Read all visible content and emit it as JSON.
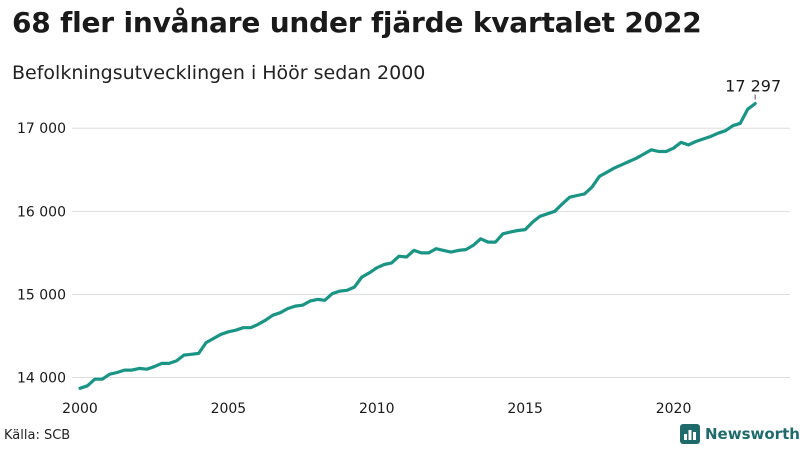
{
  "header": {
    "title": "68 fler invånare under fjärde kvartalet 2022",
    "subtitle": "Befolkningsutvecklingen i Höör sedan 2000"
  },
  "footer": {
    "source": "Källa: SCB",
    "brand": "Newsworthy",
    "brand_icon": "bar-chart-icon"
  },
  "colors": {
    "line": "#1a9585",
    "grid": "#dddddd",
    "axis_text": "#1a1a1a",
    "brand": "#1f6b6b"
  },
  "chart_data": {
    "type": "line",
    "title": "68 fler invånare under fjärde kvartalet 2022",
    "subtitle": "Befolkningsutvecklingen i Höör sedan 2000",
    "x_unit": "quarter",
    "x_start": "2000 Q1",
    "x_ticks": [
      2000,
      2005,
      2010,
      2015,
      2020
    ],
    "y_ticks": [
      14000,
      15000,
      16000,
      17000
    ],
    "y_tick_labels": [
      "14 000",
      "15 000",
      "16 000",
      "17 000"
    ],
    "ylim": [
      13850,
      17400
    ],
    "xlim": [
      2000,
      2023.25
    ],
    "grid": "horizontal",
    "legend": "none",
    "end_label": "17 297",
    "series": [
      {
        "values": [
          13870,
          13900,
          13980,
          13980,
          14040,
          14060,
          14090,
          14090,
          14110,
          14100,
          14130,
          14170,
          14170,
          14200,
          14270,
          14280,
          14290,
          14420,
          14470,
          14520,
          14550,
          14570,
          14600,
          14600,
          14640,
          14690,
          14750,
          14780,
          14830,
          14860,
          14870,
          14920,
          14940,
          14930,
          15010,
          15040,
          15050,
          15090,
          15210,
          15260,
          15320,
          15360,
          15380,
          15460,
          15450,
          15530,
          15500,
          15500,
          15550,
          15530,
          15510,
          15530,
          15540,
          15590,
          15670,
          15630,
          15630,
          15730,
          15750,
          15770,
          15780,
          15870,
          15940,
          15970,
          16000,
          16090,
          16170,
          16190,
          16210,
          16290,
          16420,
          16470,
          16520,
          16560,
          16600,
          16640,
          16690,
          16740,
          16720,
          16720,
          16760,
          16830,
          16800,
          16840,
          16870,
          16900,
          16940,
          16970,
          17030,
          17060,
          17229,
          17297
        ]
      }
    ]
  }
}
